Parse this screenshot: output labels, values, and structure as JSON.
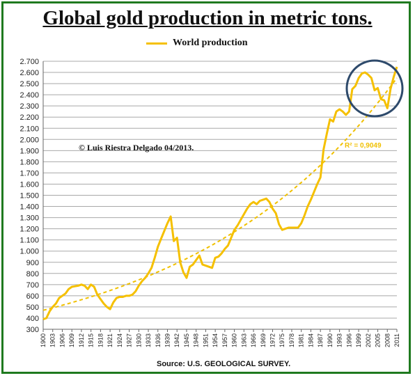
{
  "chart_data": {
    "type": "line",
    "title": "Global gold production in metric tons.",
    "legend": [
      "World production"
    ],
    "copyright": "© Luis Riestra Delgado 04/2013.",
    "trendline_label": "R² = 0,9049",
    "source": "Source: U.S. GEOLOGICAL SURVEY.",
    "ylim": [
      300,
      2700
    ],
    "ytick_labels": [
      "300",
      "400",
      "500",
      "600",
      "700",
      "800",
      "900",
      "1.000",
      "1.100",
      "1.200",
      "1.300",
      "1.400",
      "1.500",
      "1.600",
      "1.700",
      "1.800",
      "1.900",
      "2.000",
      "2.100",
      "2.200",
      "2.300",
      "2.400",
      "2.500",
      "2.600",
      "2.700"
    ],
    "xtick_labels": [
      "1900",
      "1903",
      "1906",
      "1909",
      "1912",
      "1915",
      "1918",
      "1921",
      "1924",
      "1927",
      "1930",
      "1933",
      "1936",
      "1939",
      "1942",
      "1945",
      "1948",
      "1951",
      "1954",
      "1957",
      "1960",
      "1963",
      "1966",
      "1969",
      "1972",
      "1975",
      "1978",
      "1981",
      "1984",
      "1987",
      "1990",
      "1993",
      "1996",
      "1999",
      "2002",
      "2005",
      "2008",
      "2011"
    ],
    "series": [
      {
        "name": "World production",
        "x": [
          1900,
          1901,
          1902,
          1903,
          1904,
          1905,
          1906,
          1907,
          1908,
          1909,
          1910,
          1911,
          1912,
          1913,
          1914,
          1915,
          1916,
          1917,
          1918,
          1919,
          1920,
          1921,
          1922,
          1923,
          1924,
          1925,
          1926,
          1927,
          1928,
          1929,
          1930,
          1931,
          1932,
          1933,
          1934,
          1935,
          1936,
          1937,
          1938,
          1939,
          1940,
          1941,
          1942,
          1943,
          1944,
          1945,
          1946,
          1947,
          1948,
          1949,
          1950,
          1951,
          1952,
          1953,
          1954,
          1955,
          1956,
          1957,
          1958,
          1959,
          1960,
          1961,
          1962,
          1963,
          1964,
          1965,
          1966,
          1967,
          1968,
          1969,
          1970,
          1971,
          1972,
          1973,
          1974,
          1975,
          1976,
          1977,
          1978,
          1979,
          1980,
          1981,
          1982,
          1983,
          1984,
          1985,
          1986,
          1987,
          1988,
          1989,
          1990,
          1991,
          1992,
          1993,
          1994,
          1995,
          1996,
          1997,
          1998,
          1999,
          2000,
          2001,
          2002,
          2003,
          2004,
          2005,
          2006,
          2007,
          2008,
          2009,
          2010,
          2011
        ],
        "values": [
          390,
          400,
          460,
          500,
          530,
          580,
          600,
          620,
          660,
          680,
          685,
          690,
          700,
          690,
          660,
          700,
          680,
          610,
          570,
          530,
          500,
          480,
          540,
          580,
          590,
          590,
          600,
          600,
          610,
          640,
          690,
          730,
          760,
          800,
          850,
          940,
          1040,
          1110,
          1180,
          1250,
          1310,
          1090,
          1120,
          900,
          810,
          760,
          860,
          880,
          920,
          960,
          880,
          870,
          860,
          850,
          940,
          950,
          980,
          1020,
          1050,
          1120,
          1190,
          1230,
          1280,
          1330,
          1380,
          1420,
          1440,
          1420,
          1450,
          1460,
          1470,
          1440,
          1380,
          1340,
          1240,
          1190,
          1200,
          1210,
          1210,
          1210,
          1210,
          1250,
          1320,
          1400,
          1460,
          1530,
          1600,
          1660,
          1910,
          2050,
          2180,
          2160,
          2250,
          2270,
          2250,
          2220,
          2250,
          2450,
          2480,
          2550,
          2590,
          2600,
          2580,
          2550,
          2440,
          2460,
          2360,
          2350,
          2280,
          2450,
          2560,
          2650
        ],
        "color": "#f5c000"
      }
    ],
    "trendline": {
      "type": "exponential",
      "x": [
        1900,
        2011
      ],
      "values": [
        470,
        2550
      ],
      "color": "#f0c000"
    },
    "grid": true
  }
}
